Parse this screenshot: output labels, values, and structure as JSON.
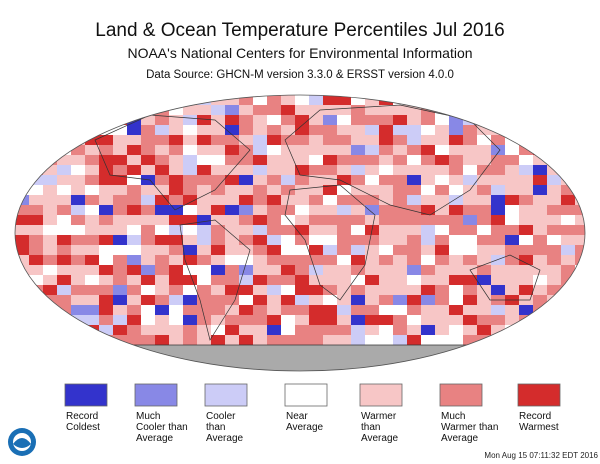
{
  "header": {
    "title": "Land & Ocean Temperature Percentiles Jul 2016",
    "subtitle": "NOAA's National Centers for Environmental Information",
    "source": "Data Source: GHCN-M version 3.3.0 & ERSST version 4.0.0"
  },
  "legend": [
    {
      "label": "Record Coldest",
      "color": "#3333cc"
    },
    {
      "label": "Much Cooler than Average",
      "color": "#8888e6"
    },
    {
      "label": "Cooler than Average",
      "color": "#ccccf7"
    },
    {
      "label": "Near Average",
      "color": "#ffffff"
    },
    {
      "label": "Warmer than Average",
      "color": "#f7c6c6"
    },
    {
      "label": "Much Warmer than Average",
      "color": "#e88282"
    },
    {
      "label": "Record Warmest",
      "color": "#d42c2c"
    }
  ],
  "footer": {
    "timestamp": "Mon Aug 15 07:11:32 EDT 2016"
  }
}
